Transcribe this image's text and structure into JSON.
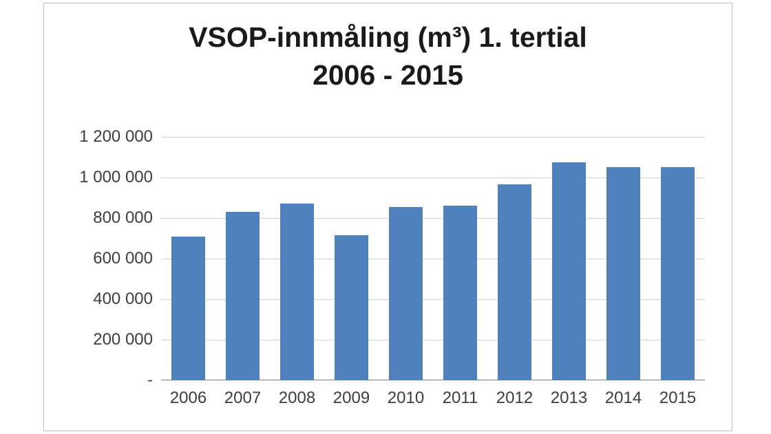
{
  "chart_data": {
    "type": "bar",
    "title": "VSOP-innmåling (m³) 1. tertial 2006 - 2015",
    "title_line1": "VSOP-innmåling (m³) 1. tertial",
    "title_line2": "2006 - 2015",
    "categories": [
      "2006",
      "2007",
      "2008",
      "2009",
      "2010",
      "2011",
      "2012",
      "2013",
      "2014",
      "2015"
    ],
    "values": [
      710000,
      830000,
      870000,
      715000,
      855000,
      860000,
      965000,
      1075000,
      1050000,
      1050000
    ],
    "xlabel": "",
    "ylabel": "",
    "ylim": [
      0,
      1200000
    ],
    "ytick_values": [
      0,
      200000,
      400000,
      600000,
      800000,
      1000000,
      1200000
    ],
    "ytick_labels": [
      "-",
      "200 000",
      "400 000",
      "600 000",
      "800 000",
      "1 000 000",
      "1 200 000"
    ],
    "grid": true,
    "legend_position": "none",
    "bar_color": "#4f81bd",
    "gridline_color": "#d2d2d2",
    "axis_line_color": "#7f7f7f"
  }
}
